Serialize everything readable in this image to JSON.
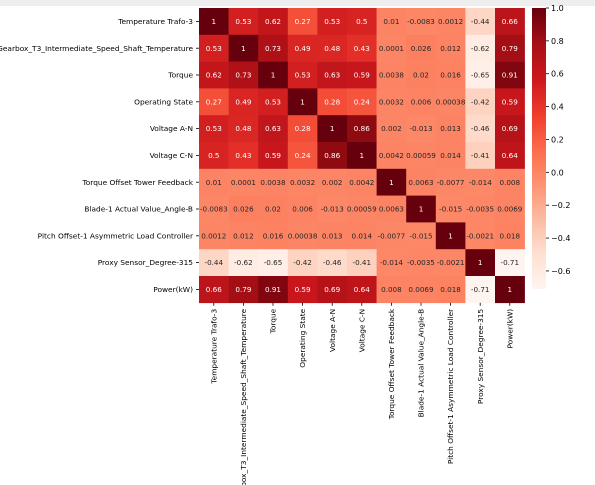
{
  "chart_data": {
    "type": "heatmap",
    "title": "",
    "xlabel": "",
    "ylabel": "",
    "variables": [
      "Temperature Trafo-3",
      "Gearbox_T3_Intermediate_Speed_Shaft_Temperature",
      "Torque",
      "Operating State",
      "Voltage A-N",
      "Voltage C-N",
      "Torque Offset Tower Feedback",
      "Blade-1 Actual Value_Angle-B",
      "Pitch Offset-1 Asymmetric Load Controller",
      "Proxy Sensor_Degree-315",
      "Power(kW)"
    ],
    "values": [
      [
        1,
        0.53,
        0.62,
        0.27,
        0.53,
        0.5,
        0.01,
        -0.0083,
        0.0012,
        -0.44,
        0.66
      ],
      [
        0.53,
        1,
        0.73,
        0.49,
        0.48,
        0.43,
        0.0001,
        0.026,
        0.012,
        -0.62,
        0.79
      ],
      [
        0.62,
        0.73,
        1,
        0.53,
        0.63,
        0.59,
        0.0038,
        0.02,
        0.016,
        -0.65,
        0.91
      ],
      [
        0.27,
        0.49,
        0.53,
        1,
        0.28,
        0.24,
        0.0032,
        0.006,
        0.00038,
        -0.42,
        0.59
      ],
      [
        0.53,
        0.48,
        0.63,
        0.28,
        1,
        0.86,
        0.002,
        -0.013,
        0.013,
        -0.46,
        0.69
      ],
      [
        0.5,
        0.43,
        0.59,
        0.24,
        0.86,
        1,
        0.0042,
        0.00059,
        0.014,
        -0.41,
        0.64
      ],
      [
        0.01,
        0.0001,
        0.0038,
        0.0032,
        0.002,
        0.0042,
        1,
        0.0063,
        -0.0077,
        -0.014,
        0.008
      ],
      [
        -0.0083,
        0.026,
        0.02,
        0.006,
        -0.013,
        0.00059,
        0.0063,
        1,
        -0.015,
        -0.0035,
        0.0069
      ],
      [
        0.0012,
        0.012,
        0.016,
        0.00038,
        0.013,
        0.014,
        -0.0077,
        -0.015,
        1,
        -0.0021,
        0.018
      ],
      [
        -0.44,
        -0.62,
        -0.65,
        -0.42,
        -0.46,
        -0.41,
        -0.014,
        -0.0035,
        -0.0021,
        1,
        -0.71
      ],
      [
        0.66,
        0.79,
        0.91,
        0.59,
        0.69,
        0.64,
        0.008,
        0.0069,
        0.018,
        -0.71,
        1
      ]
    ],
    "labels": [
      [
        "1",
        "0.53",
        "0.62",
        "0.27",
        "0.53",
        "0.5",
        "0.01",
        "-0.0083",
        "0.0012",
        "-0.44",
        "0.66"
      ],
      [
        "0.53",
        "1",
        "0.73",
        "0.49",
        "0.48",
        "0.43",
        "0.0001",
        "0.026",
        "0.012",
        "-0.62",
        "0.79"
      ],
      [
        "0.62",
        "0.73",
        "1",
        "0.53",
        "0.63",
        "0.59",
        "0.0038",
        "0.02",
        "0.016",
        "-0.65",
        "0.91"
      ],
      [
        "0.27",
        "0.49",
        "0.53",
        "1",
        "0.28",
        "0.24",
        "0.0032",
        "0.006",
        "0.00038",
        "-0.42",
        "0.59"
      ],
      [
        "0.53",
        "0.48",
        "0.63",
        "0.28",
        "1",
        "0.86",
        "0.002",
        "-0.013",
        "0.013",
        "-0.46",
        "0.69"
      ],
      [
        "0.5",
        "0.43",
        "0.59",
        "0.24",
        "0.86",
        "1",
        "0.0042",
        "0.00059",
        "0.014",
        "-0.41",
        "0.64"
      ],
      [
        "0.01",
        "0.0001",
        "0.0038",
        "0.0032",
        "0.002",
        "0.0042",
        "1",
        "0.0063",
        "-0.0077",
        "-0.014",
        "0.008"
      ],
      [
        "-0.0083",
        "0.026",
        "0.02",
        "0.006",
        "-0.013",
        "0.00059",
        "0.0063",
        "1",
        "-0.015",
        "-0.0035",
        "0.0069"
      ],
      [
        "0.0012",
        "0.012",
        "0.016",
        "0.00038",
        "0.013",
        "0.014",
        "-0.0077",
        "-0.015",
        "1",
        "-0.0021",
        "0.018"
      ],
      [
        "-0.44",
        "-0.62",
        "-0.65",
        "-0.42",
        "-0.46",
        "-0.41",
        "-0.014",
        "-0.0035",
        "-0.0021",
        "1",
        "-0.71"
      ],
      [
        "0.66",
        "0.79",
        "0.91",
        "0.59",
        "0.69",
        "0.64",
        "0.008",
        "0.0069",
        "0.018",
        "-0.71",
        "1"
      ]
    ],
    "colorscale": "Reds",
    "vmin": -0.71,
    "vmax": 1,
    "colorbar_ticks": [
      {
        "value": 1.0,
        "label": "1.0"
      },
      {
        "value": 0.8,
        "label": "0.8"
      },
      {
        "value": 0.6,
        "label": "0.6"
      },
      {
        "value": 0.4,
        "label": "0.4"
      },
      {
        "value": 0.2,
        "label": "0.2"
      },
      {
        "value": 0.0,
        "label": "0.0"
      },
      {
        "value": -0.2,
        "label": "−0.2"
      },
      {
        "value": -0.4,
        "label": "−0.4"
      },
      {
        "value": -0.6,
        "label": "−0.6"
      }
    ],
    "colorbar_position": "right",
    "grid": false
  }
}
